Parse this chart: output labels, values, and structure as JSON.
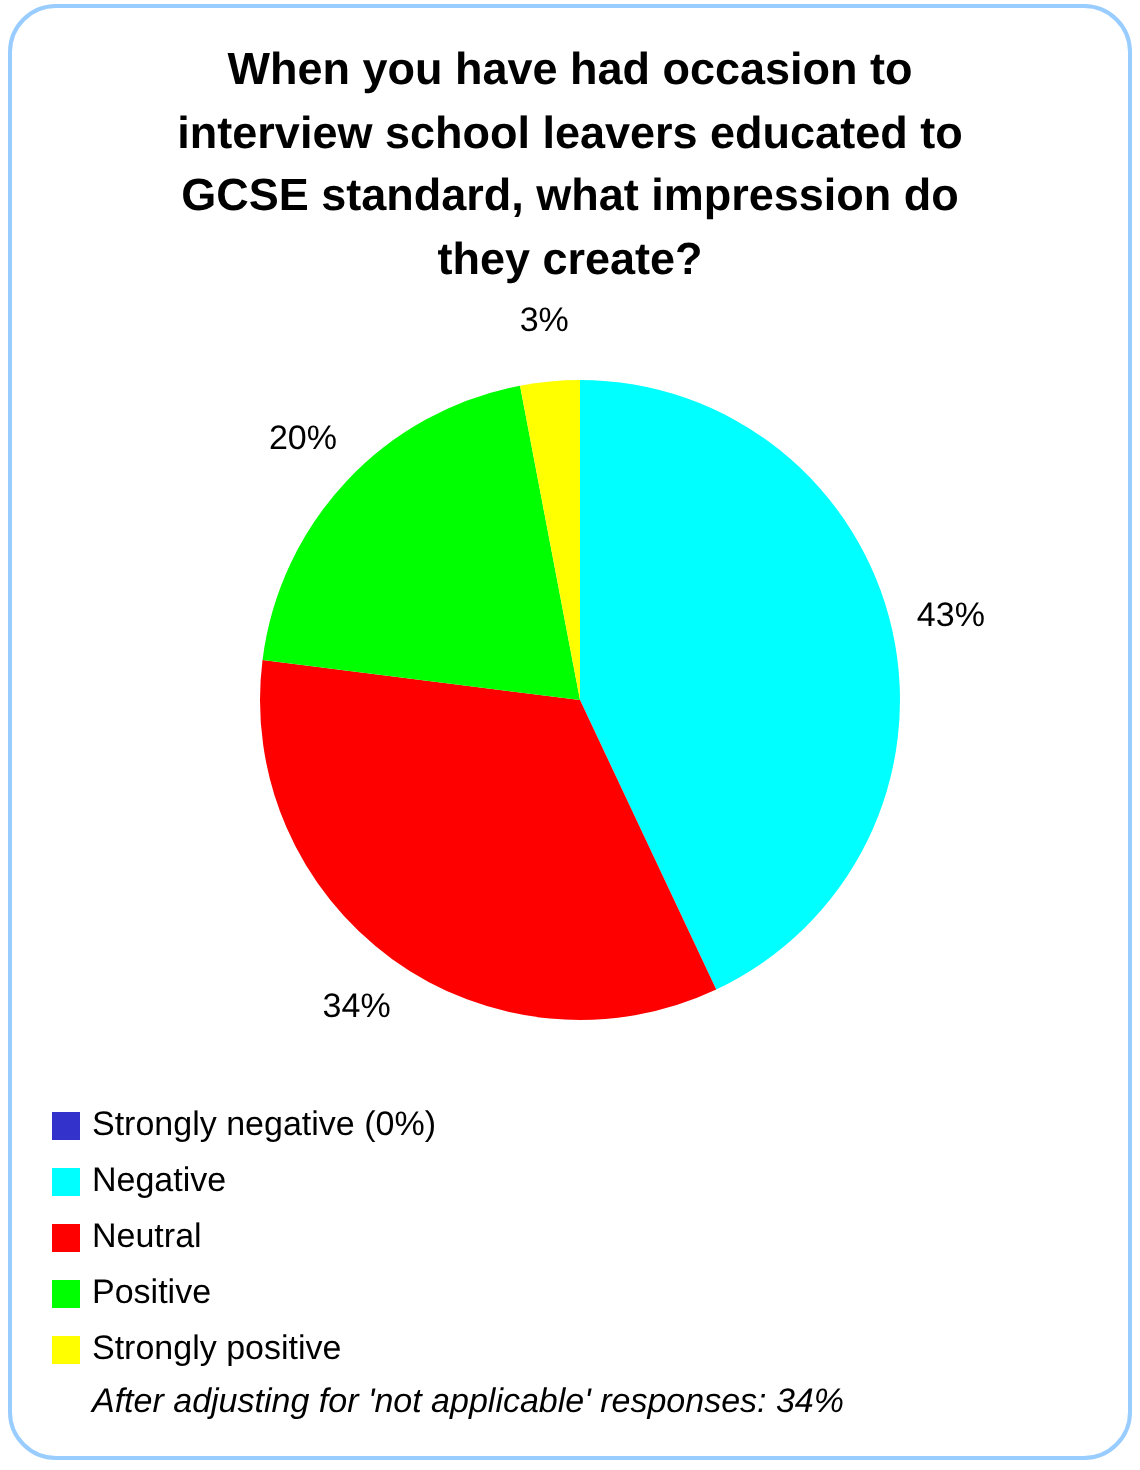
{
  "chart_data": {
    "type": "pie",
    "title": "When you have had occasion to interview school leavers educated to GCSE standard, what impression do they create?",
    "categories": [
      "Strongly negative (0%)",
      "Negative",
      "Neutral",
      "Positive",
      "Strongly positive"
    ],
    "values": [
      0,
      43,
      34,
      20,
      3
    ],
    "colors": [
      "#3333cc",
      "#00ffff",
      "#ff0000",
      "#00ff00",
      "#ffff00"
    ],
    "value_labels": [
      null,
      "43%",
      "34%",
      "20%",
      "3%"
    ],
    "legend": "bottom",
    "annotations": [
      "After adjusting for 'not applicable' responses: 34%"
    ]
  }
}
